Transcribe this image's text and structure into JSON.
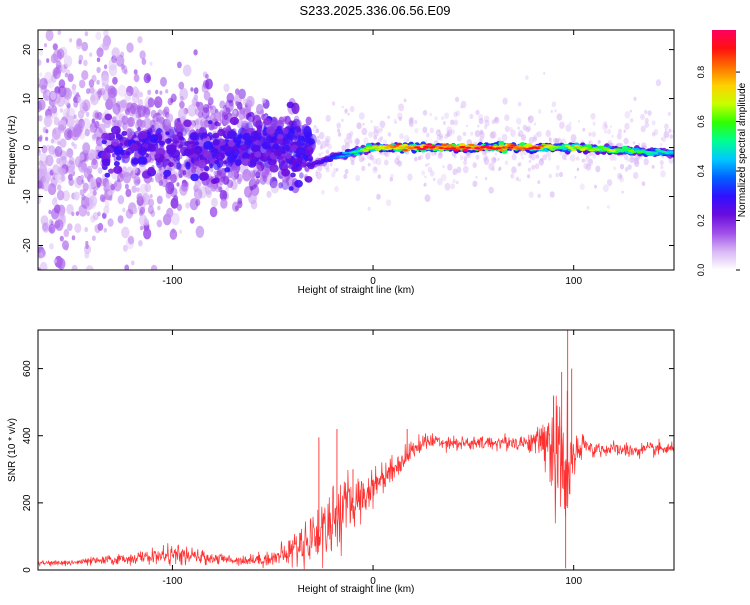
{
  "title": "S233.2025.336.06.56.E09",
  "chart_data": [
    {
      "type": "heatmap",
      "xlabel": "Height of straight line (km)",
      "ylabel": "Frequency (Hz)",
      "xlim": [
        -167,
        150
      ],
      "ylim": [
        -25,
        24
      ],
      "xticks": [
        -100,
        0,
        100
      ],
      "xtick_labels": [
        "-100",
        "0",
        "100"
      ],
      "yticks": [
        -20,
        -10,
        0,
        10,
        20
      ],
      "ytick_labels": [
        "-20",
        "-10",
        "0",
        "10",
        "20"
      ],
      "colorbar": {
        "label": "Normalized spectral amplitude",
        "range": [
          0,
          0.97
        ],
        "ticks": [
          0.0,
          0.2,
          0.4,
          0.6,
          0.8
        ],
        "tick_labels": [
          "0.0",
          "0.2",
          "0.4",
          "0.6",
          "0.8"
        ],
        "colors": [
          "#ffffff",
          "#d9b8f5",
          "#a050e8",
          "#6a0cde",
          "#3010ff",
          "#0060ff",
          "#00c8ff",
          "#00ff90",
          "#30ff00",
          "#c8ff00",
          "#ffd000",
          "#ff7000",
          "#ff1010",
          "#ff0060"
        ]
      },
      "series": [
        {
          "name": "carrier line",
          "x": [
            -30,
            -20,
            -10,
            0,
            10,
            20,
            40,
            60,
            80,
            90,
            95,
            100,
            120,
            140,
            150
          ],
          "frequency": [
            -3.5,
            -2,
            -1,
            0,
            0,
            0,
            0,
            0,
            0,
            0,
            0,
            0,
            -0.5,
            -1,
            -1
          ],
          "amplitude": [
            0.25,
            0.35,
            0.5,
            0.75,
            0.85,
            0.95,
            0.95,
            0.95,
            0.9,
            0.7,
            0.6,
            0.75,
            0.65,
            0.55,
            0.5
          ]
        },
        {
          "name": "scatter cloud",
          "x": [
            -167,
            -140,
            -120,
            -100,
            -80,
            -60,
            -45,
            -35
          ],
          "frequency": [
            0,
            0,
            0,
            0,
            0,
            0,
            0,
            0
          ],
          "spread": [
            20,
            18,
            14,
            10,
            8,
            7,
            5,
            4
          ],
          "amplitude": [
            0.12,
            0.13,
            0.14,
            0.15,
            0.16,
            0.18,
            0.2,
            0.22
          ]
        }
      ]
    },
    {
      "type": "line",
      "color": "#ff3030",
      "xlabel": "Height of straight line (km)",
      "ylabel": "SNR (10 * v/v)",
      "xlim": [
        -167,
        150
      ],
      "ylim": [
        0,
        715
      ],
      "xticks": [
        -100,
        0,
        100
      ],
      "xtick_labels": [
        "-100",
        "0",
        "100"
      ],
      "yticks": [
        0,
        200,
        400,
        600
      ],
      "ytick_labels": [
        "0",
        "200",
        "400",
        "600"
      ],
      "x": [
        -167,
        -150,
        -130,
        -110,
        -100,
        -90,
        -80,
        -70,
        -60,
        -50,
        -45,
        -40,
        -35,
        -30,
        -25,
        -20,
        -15,
        -10,
        -5,
        0,
        5,
        10,
        15,
        20,
        25,
        30,
        40,
        50,
        60,
        70,
        80,
        85,
        88,
        90,
        92,
        95,
        97,
        100,
        105,
        110,
        120,
        130,
        140,
        150
      ],
      "y": [
        20,
        22,
        30,
        40,
        45,
        40,
        35,
        30,
        30,
        35,
        45,
        60,
        80,
        100,
        120,
        150,
        180,
        200,
        220,
        250,
        280,
        300,
        330,
        360,
        380,
        385,
        380,
        375,
        380,
        380,
        380,
        385,
        390,
        350,
        330,
        300,
        290,
        330,
        370,
        360,
        360,
        355,
        360,
        360
      ],
      "noise": [
        6,
        8,
        12,
        18,
        25,
        20,
        15,
        12,
        15,
        20,
        30,
        40,
        55,
        70,
        85,
        90,
        80,
        65,
        55,
        45,
        40,
        35,
        30,
        25,
        22,
        20,
        18,
        18,
        18,
        20,
        25,
        60,
        110,
        150,
        180,
        160,
        130,
        70,
        25,
        20,
        18,
        18,
        18,
        18
      ],
      "spikes": [
        {
          "x": -27,
          "y": 395
        },
        {
          "x": -18,
          "y": 420
        },
        {
          "x": -10,
          "y": 300
        },
        {
          "x": 17,
          "y": 420
        },
        {
          "x": 90,
          "y": 520
        },
        {
          "x": 94,
          "y": 590
        },
        {
          "x": 97,
          "y": 715
        },
        {
          "x": 99,
          "y": 600
        },
        {
          "x": 96,
          "y": 5
        }
      ]
    }
  ]
}
